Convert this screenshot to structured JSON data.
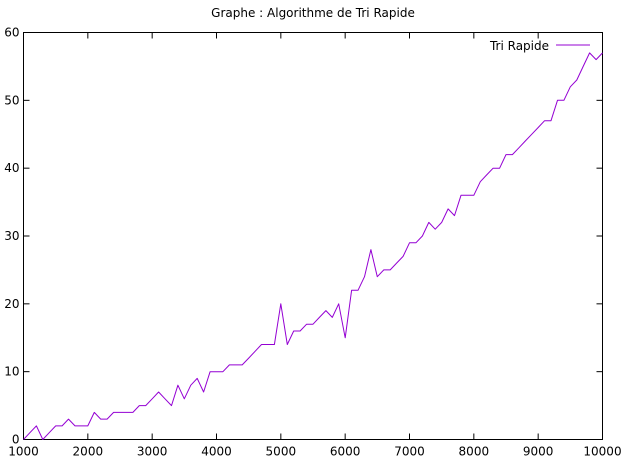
{
  "chart_data": {
    "type": "line",
    "title": "Graphe : Algorithme de Tri Rapide",
    "xlabel": "",
    "ylabel": "",
    "xlim": [
      1000,
      10000
    ],
    "ylim": [
      0,
      60
    ],
    "x_ticks": [
      1000,
      2000,
      3000,
      4000,
      5000,
      6000,
      7000,
      8000,
      9000,
      10000
    ],
    "y_ticks": [
      0,
      10,
      20,
      30,
      40,
      50,
      60
    ],
    "grid": false,
    "legend_position": "top-right",
    "series": [
      {
        "name": "Tri Rapide",
        "color": "#9400d3",
        "x": [
          1000,
          1100,
          1200,
          1300,
          1400,
          1500,
          1600,
          1700,
          1800,
          1900,
          2000,
          2100,
          2200,
          2300,
          2400,
          2500,
          2600,
          2700,
          2800,
          2900,
          3000,
          3100,
          3200,
          3300,
          3400,
          3500,
          3600,
          3700,
          3800,
          3900,
          4000,
          4100,
          4200,
          4300,
          4400,
          4500,
          4600,
          4700,
          4800,
          4900,
          5000,
          5100,
          5200,
          5300,
          5400,
          5500,
          5600,
          5700,
          5800,
          5900,
          6000,
          6100,
          6200,
          6300,
          6400,
          6500,
          6600,
          6700,
          6800,
          6900,
          7000,
          7100,
          7200,
          7300,
          7400,
          7500,
          7600,
          7700,
          7800,
          7900,
          8000,
          8100,
          8200,
          8300,
          8400,
          8500,
          8600,
          8700,
          8800,
          8900,
          9000,
          9100,
          9200,
          9300,
          9400,
          9500,
          9600,
          9700,
          9800,
          9900,
          10000
        ],
        "y": [
          0,
          1,
          2,
          0,
          1,
          2,
          2,
          3,
          2,
          2,
          2,
          4,
          3,
          3,
          4,
          4,
          4,
          4,
          5,
          5,
          6,
          7,
          6,
          5,
          8,
          6,
          8,
          9,
          7,
          10,
          10,
          10,
          11,
          11,
          11,
          12,
          13,
          14,
          14,
          14,
          20,
          14,
          16,
          16,
          17,
          17,
          18,
          19,
          18,
          20,
          15,
          22,
          22,
          24,
          28,
          24,
          25,
          25,
          26,
          27,
          29,
          29,
          30,
          32,
          31,
          32,
          34,
          33,
          36,
          36,
          36,
          38,
          39,
          40,
          40,
          42,
          42,
          43,
          44,
          45,
          46,
          47,
          47,
          50,
          50,
          52,
          53,
          55,
          57,
          56,
          57
        ]
      }
    ]
  }
}
